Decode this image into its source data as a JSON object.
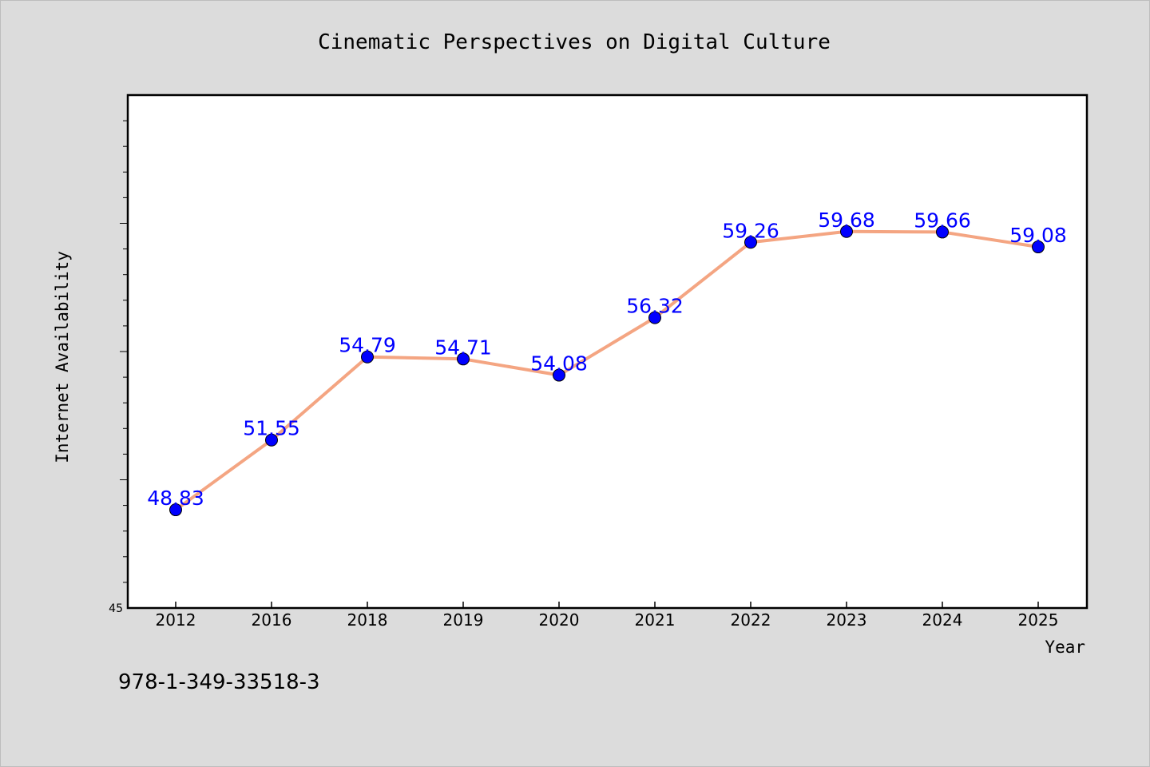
{
  "chart_data": {
    "type": "line",
    "title": "Cinematic Perspectives on Digital Culture",
    "xlabel": "Year",
    "ylabel": "Internet Availability",
    "categories": [
      "2012",
      "2016",
      "2018",
      "2019",
      "2020",
      "2021",
      "2022",
      "2023",
      "2024",
      "2025"
    ],
    "series": [
      {
        "values": [
          48.83,
          51.55,
          54.79,
          54.71,
          54.08,
          56.32,
          59.26,
          59.68,
          59.66,
          59.08
        ],
        "labels": [
          "48.83",
          "51.55",
          "54.79",
          "54.71",
          "54.08",
          "56.32",
          "59.26",
          "59.68",
          "59.66",
          "59.08"
        ]
      }
    ],
    "ylim": [
      45,
      65
    ],
    "ytick_labels": [
      "45"
    ],
    "grid": false,
    "colors": {
      "line": "#f4a582",
      "marker": "#0000ff",
      "label": "#0000ff"
    }
  },
  "footer": {
    "isbn": "978-1-349-33518-3"
  }
}
